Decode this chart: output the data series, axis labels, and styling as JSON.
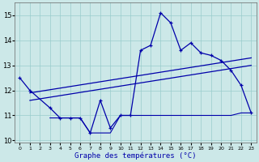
{
  "xlabel": "Graphe des températures (°C)",
  "bg_color": "#cce8e8",
  "grid_color": "#99cccc",
  "line_color": "#0000aa",
  "temp_main_x": [
    0,
    1,
    3,
    4,
    5,
    6,
    7,
    8,
    9,
    10,
    11,
    12,
    13,
    14,
    15,
    16,
    17,
    18,
    19,
    20,
    21,
    22,
    23
  ],
  "temp_main_y": [
    12.5,
    12.0,
    11.3,
    10.9,
    10.9,
    10.9,
    10.3,
    11.6,
    10.5,
    11.0,
    11.0,
    13.6,
    13.8,
    15.1,
    14.7,
    13.6,
    13.9,
    13.5,
    13.4,
    13.2,
    12.8,
    12.2,
    11.1
  ],
  "temp_min_x": [
    3,
    4,
    5,
    6,
    7,
    8,
    9,
    10,
    11,
    12,
    13,
    14,
    15,
    16,
    17,
    18,
    19,
    20,
    21,
    22,
    23
  ],
  "temp_min_y": [
    10.9,
    10.9,
    10.9,
    10.9,
    10.3,
    10.3,
    10.3,
    11.0,
    11.0,
    11.0,
    11.0,
    11.0,
    11.0,
    11.0,
    11.0,
    11.0,
    11.0,
    11.0,
    11.0,
    11.1,
    11.1
  ],
  "trend1_x": [
    1,
    23
  ],
  "trend1_y": [
    11.9,
    13.3
  ],
  "trend2_x": [
    1,
    23
  ],
  "trend2_y": [
    11.6,
    13.0
  ],
  "xlim": [
    -0.5,
    23.5
  ],
  "ylim": [
    9.9,
    15.5
  ],
  "yticks": [
    10,
    11,
    12,
    13,
    14,
    15
  ],
  "xticks": [
    0,
    1,
    2,
    3,
    4,
    5,
    6,
    7,
    8,
    9,
    10,
    11,
    12,
    13,
    14,
    15,
    16,
    17,
    18,
    19,
    20,
    21,
    22,
    23
  ]
}
